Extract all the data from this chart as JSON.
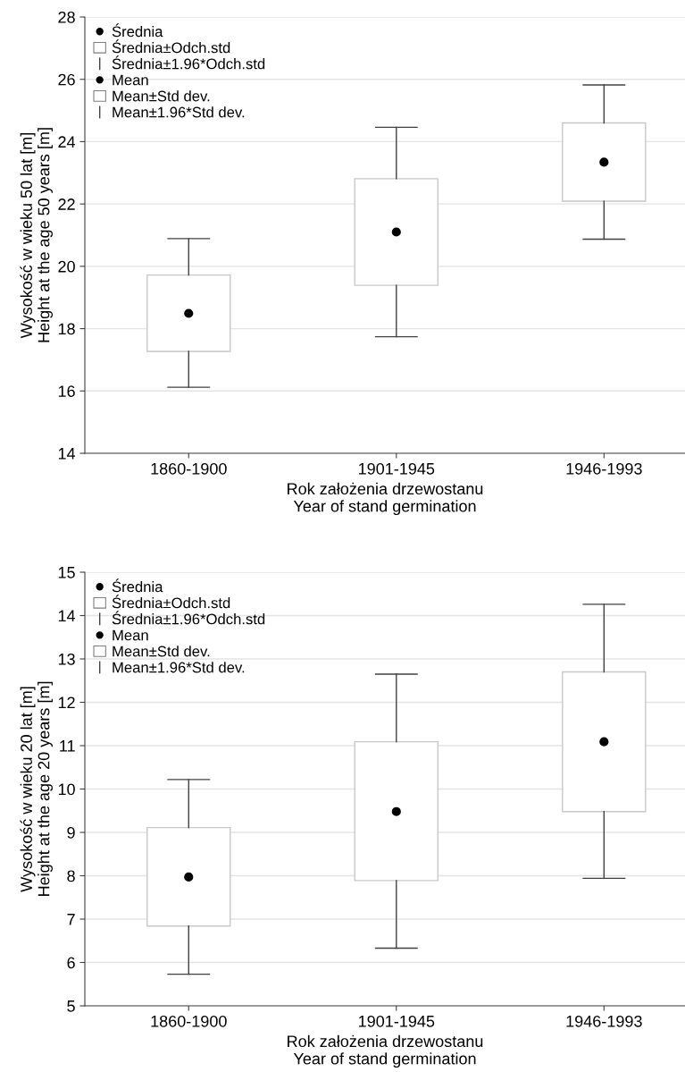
{
  "chart_data": [
    {
      "type": "box",
      "categories": [
        "1860-1900",
        "1901-1945",
        "1946-1993"
      ],
      "xlabel": "Rok założenia drzewostanu\nYear of stand germination",
      "ylabel": "Wysokość w wieku 50 lat [m]\nHeight at the age 50 years [m]",
      "ylim": [
        14,
        28
      ],
      "yticks": [
        14,
        16,
        18,
        20,
        22,
        24,
        26,
        28
      ],
      "grid": "y",
      "boxes": [
        {
          "low": 16.12,
          "q1": 17.27,
          "median": 18.49,
          "q3": 19.72,
          "high": 20.89
        },
        {
          "low": 17.74,
          "q1": 19.39,
          "median": 21.1,
          "q3": 22.81,
          "high": 24.46
        },
        {
          "low": 20.87,
          "q1": 22.09,
          "median": 23.34,
          "q3": 24.6,
          "high": 25.82
        }
      ],
      "annotations": [
        "Średnia",
        "Średnia±Odch.std",
        "Średnia±1.96*Odch.std",
        "Mean",
        "Mean±Std dev.",
        "Mean±1.96*Std dev."
      ]
    },
    {
      "type": "box",
      "categories": [
        "1860-1900",
        "1901-1945",
        "1946-1993"
      ],
      "xlabel": "Rok założenia drzewostanu\nYear of stand germination",
      "ylabel": "Wysokość w wieku 20 lat [m]\nHeight at the age 20 years [m]",
      "ylim": [
        5,
        15
      ],
      "yticks": [
        5,
        6,
        7,
        8,
        9,
        10,
        11,
        12,
        13,
        14,
        15
      ],
      "grid": "y",
      "boxes": [
        {
          "low": 5.73,
          "q1": 6.84,
          "median": 7.97,
          "q3": 9.11,
          "high": 10.22
        },
        {
          "low": 6.33,
          "q1": 7.89,
          "median": 9.48,
          "q3": 11.09,
          "high": 12.65
        },
        {
          "low": 7.94,
          "q1": 9.48,
          "median": 11.09,
          "q3": 12.7,
          "high": 14.26
        }
      ],
      "annotations": [
        "Średnia",
        "Średnia±Odch.std",
        "Średnia±1.96*Odch.std",
        "Mean",
        "Mean±Std dev.",
        "Mean±1.96*Std dev."
      ]
    }
  ]
}
